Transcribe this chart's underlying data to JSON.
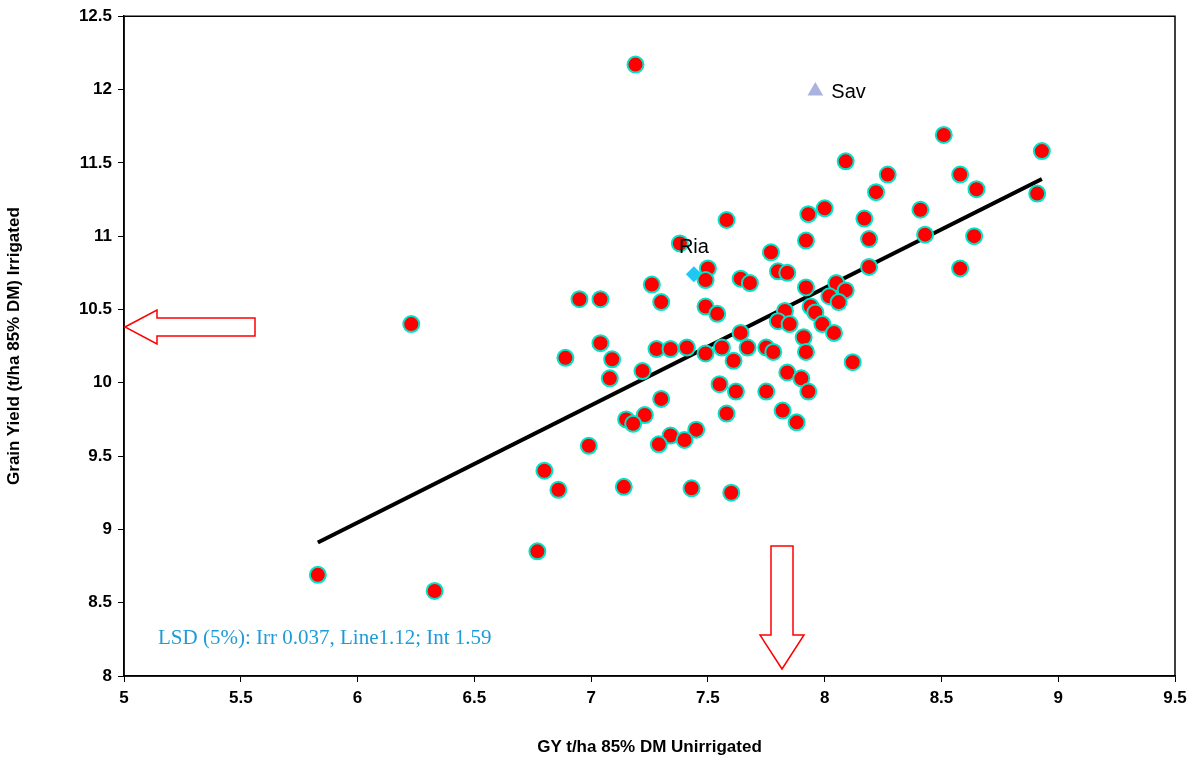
{
  "chart_data": {
    "type": "scatter",
    "xlabel": "GY t/ha 85% DM Unirrigated",
    "ylabel": "Grain Yield (t/ha 85% DM) Irrigated",
    "xlim": [
      5,
      9.5
    ],
    "xticks": [
      5,
      5.5,
      6,
      6.5,
      7,
      7.5,
      8,
      8.5,
      9,
      9.5
    ],
    "ylim": [
      8,
      12.5
    ],
    "yticks": [
      8,
      8.5,
      9,
      9.5,
      10,
      10.5,
      11,
      11.5,
      12,
      12.5
    ],
    "grid": false,
    "annotations": [
      "LSD (5%): Irr 0.037, Line1.12; Int 1.59"
    ],
    "series": [
      {
        "color": "#ff0000",
        "marker": "circle",
        "x": [
          7.19,
          8.51,
          8.09,
          8.93,
          8.27,
          8.58,
          8.22,
          8.65,
          8.91,
          8.0,
          8.41,
          7.93,
          8.17,
          7.58,
          8.43,
          8.64,
          8.19,
          7.92,
          7.38,
          7.77,
          7.5,
          8.58,
          8.19,
          7.8,
          7.84,
          7.49,
          7.64,
          7.68,
          8.05,
          7.26,
          7.92,
          8.09,
          8.02,
          6.95,
          7.04,
          7.3,
          8.06,
          7.49,
          7.94,
          7.83,
          7.96,
          7.54,
          7.8,
          7.85,
          6.23,
          7.99,
          8.04,
          7.64,
          7.91,
          7.04,
          7.67,
          7.28,
          7.34,
          7.41,
          7.56,
          7.75,
          7.78,
          7.92,
          7.49,
          6.89,
          7.09,
          7.61,
          8.12,
          7.22,
          7.84,
          7.08,
          7.9,
          7.55,
          7.62,
          7.75,
          7.93,
          7.3,
          7.82,
          7.58,
          7.23,
          7.15,
          7.18,
          7.88,
          7.45,
          7.34,
          7.29,
          7.4,
          6.99,
          6.8,
          7.14,
          6.86,
          7.43,
          7.6,
          6.77,
          5.83,
          6.33
        ],
        "values": [
          12.17,
          11.69,
          11.51,
          11.58,
          11.42,
          11.42,
          11.3,
          11.32,
          11.29,
          11.19,
          11.18,
          11.15,
          11.12,
          11.11,
          11.01,
          11.0,
          10.98,
          10.97,
          10.95,
          10.89,
          10.78,
          10.78,
          10.79,
          10.76,
          10.75,
          10.7,
          10.71,
          10.68,
          10.68,
          10.67,
          10.65,
          10.63,
          10.59,
          10.57,
          10.57,
          10.55,
          10.55,
          10.52,
          10.52,
          10.49,
          10.48,
          10.47,
          10.42,
          10.4,
          10.4,
          10.4,
          10.34,
          10.34,
          10.31,
          10.27,
          10.24,
          10.23,
          10.23,
          10.24,
          10.24,
          10.24,
          10.21,
          10.21,
          10.2,
          10.17,
          10.16,
          10.15,
          10.14,
          10.08,
          10.07,
          10.03,
          10.03,
          9.99,
          9.94,
          9.94,
          9.94,
          9.89,
          9.81,
          9.79,
          9.78,
          9.75,
          9.72,
          9.73,
          9.68,
          9.64,
          9.58,
          9.61,
          9.57,
          9.4,
          9.29,
          9.27,
          9.28,
          9.25,
          8.85,
          8.69,
          8.58
        ]
      },
      {
        "name": "Ria",
        "color": "#1ec8f5",
        "marker": "diamond",
        "x": [
          7.44
        ],
        "values": [
          10.74
        ]
      },
      {
        "name": "Sav",
        "color": "#a9b3dd",
        "marker": "triangle",
        "x": [
          7.96
        ],
        "values": [
          11.99
        ]
      },
      {
        "type": "line",
        "color": "#000000",
        "marker": "none",
        "x": [
          5.83,
          8.93
        ],
        "values": [
          8.91,
          11.39
        ]
      }
    ]
  }
}
